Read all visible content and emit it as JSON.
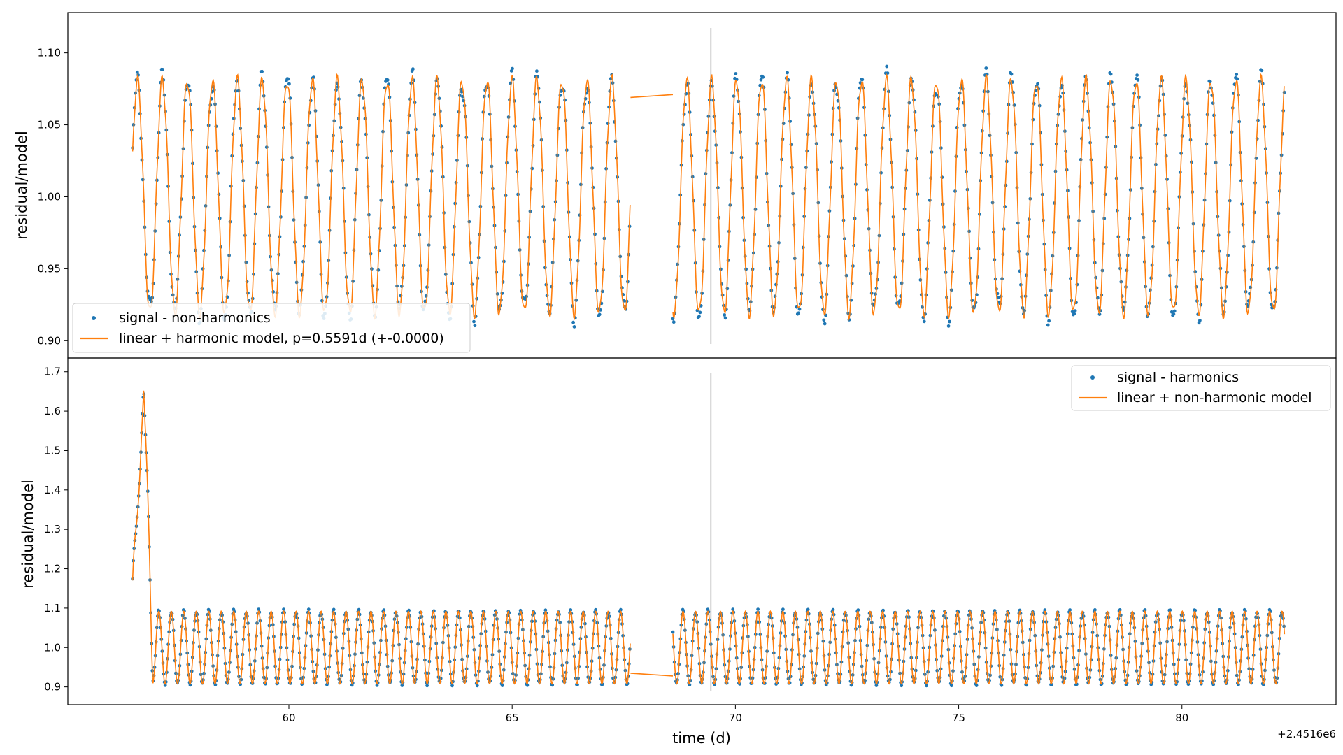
{
  "chart_data": [
    {
      "type": "scatter",
      "ylabel": "residual/model",
      "ylim": [
        0.888,
        1.128
      ],
      "yticks": [
        0.9,
        0.95,
        1.0,
        1.05,
        1.1
      ],
      "ytick_labels": [
        "0.90",
        "0.95",
        "1.00",
        "1.05",
        "1.10"
      ],
      "xlim": [
        55.05,
        83.45
      ],
      "vline_x": 69.45,
      "legend_position": "lower-left",
      "series": [
        {
          "name": "signal - non-harmonics",
          "kind": "points",
          "color": "#1f77b4"
        },
        {
          "name": "linear + harmonic model, p=0.5591d (+-0.0000)",
          "kind": "line",
          "color": "#ff7f0e"
        }
      ],
      "model": {
        "period_d": 0.5591,
        "baseline": 1.0,
        "amplitude": 0.085
      },
      "segments": [
        [
          56.5,
          67.65
        ],
        [
          68.6,
          82.3
        ]
      ],
      "gap_line": {
        "x": [
          67.65,
          68.6
        ],
        "y": [
          1.069,
          1.071
        ]
      }
    },
    {
      "type": "scatter",
      "ylabel": "residual/model",
      "ylim": [
        0.855,
        1.735
      ],
      "yticks": [
        0.9,
        1.0,
        1.1,
        1.2,
        1.3,
        1.4,
        1.5,
        1.6,
        1.7
      ],
      "ytick_labels": [
        "0.9",
        "1.0",
        "1.1",
        "1.2",
        "1.3",
        "1.4",
        "1.5",
        "1.6",
        "1.7"
      ],
      "xlabel": "time (d)",
      "xlim": [
        55.05,
        83.45
      ],
      "xticks": [
        60,
        65,
        70,
        75,
        80
      ],
      "xtick_labels": [
        "60",
        "65",
        "70",
        "75",
        "80"
      ],
      "x_offset_label": "+2.4516e6",
      "vline_x": 69.45,
      "legend_position": "upper-right",
      "series": [
        {
          "name": "signal - harmonics",
          "kind": "points",
          "color": "#1f77b4"
        },
        {
          "name": "linear + non-harmonic model",
          "kind": "line",
          "color": "#ff7f0e"
        }
      ],
      "flare": {
        "start": 56.45,
        "peak_x": 56.75,
        "peak_y": 1.69,
        "end": 56.95
      },
      "model": {
        "baseline": 1.0,
        "amplitude": 0.092
      },
      "segments": [
        [
          56.5,
          67.65
        ],
        [
          68.6,
          82.3
        ]
      ],
      "gap_line": {
        "x": [
          67.65,
          68.6
        ],
        "y": [
          0.935,
          0.928
        ]
      }
    }
  ]
}
